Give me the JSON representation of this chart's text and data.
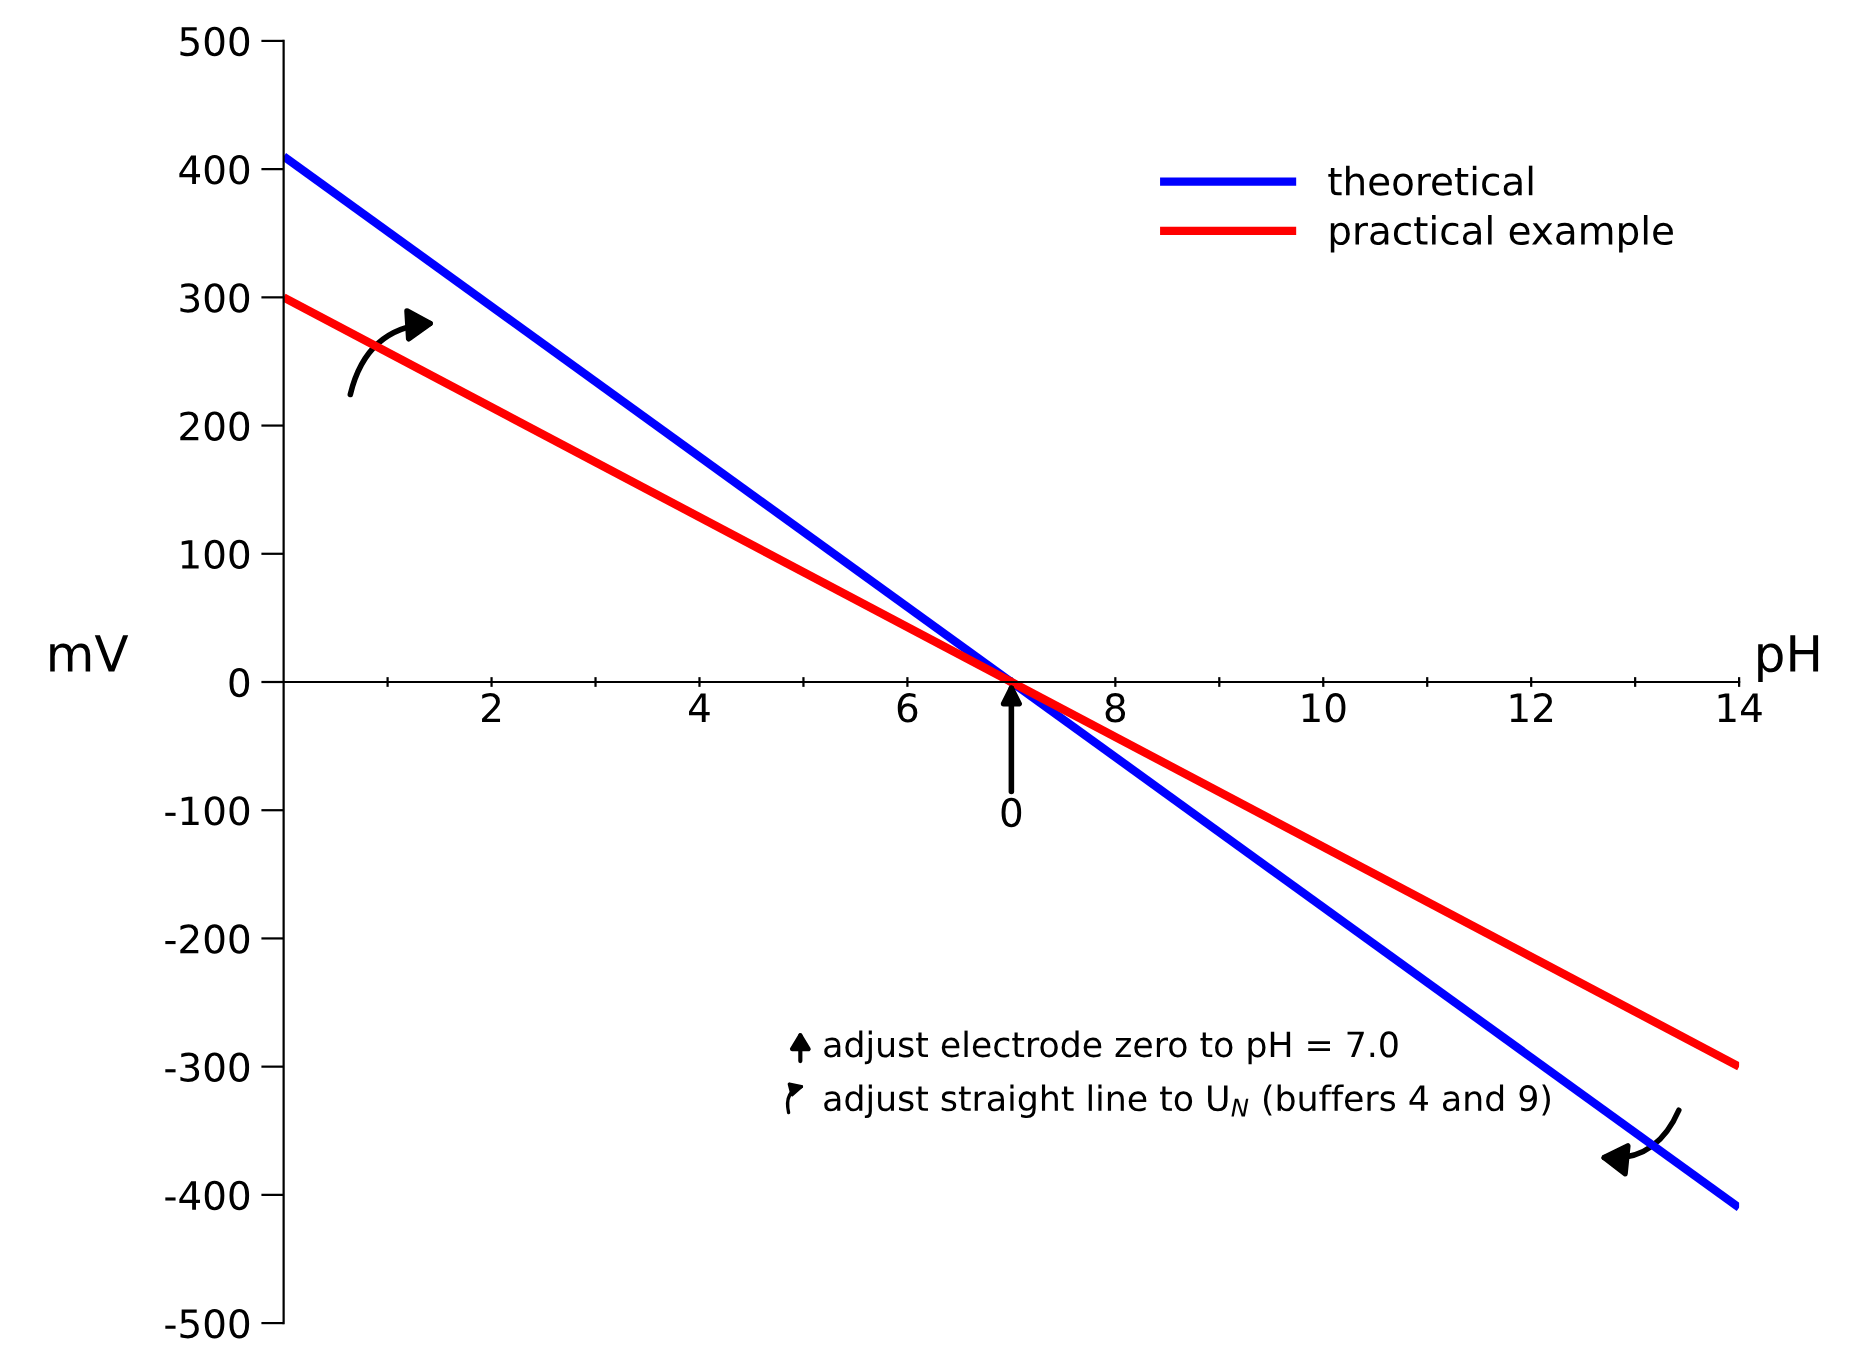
{
  "chart_data": {
    "type": "line",
    "xlabel": "pH",
    "ylabel": "mV",
    "x": [
      0,
      14
    ],
    "series": [
      {
        "name": "theoretical",
        "color": "#0000ff",
        "values": [
          410,
          -410
        ]
      },
      {
        "name": "practical example",
        "color": "#ff0000",
        "values": [
          300,
          -300
        ]
      }
    ],
    "xlim": [
      0,
      14
    ],
    "ylim": [
      -500,
      500
    ],
    "xticks": [
      {
        "value": 1,
        "label": null
      },
      2,
      {
        "value": 3,
        "label": null
      },
      4,
      {
        "value": 5,
        "label": null
      },
      6,
      {
        "value": 7,
        "label": null
      },
      8,
      {
        "value": 9,
        "label": null
      },
      10,
      {
        "value": 11,
        "label": null
      },
      12,
      {
        "value": 13,
        "label": null
      },
      14
    ],
    "yticks": [
      -500,
      -400,
      -300,
      -200,
      -100,
      0,
      100,
      200,
      300,
      400,
      500
    ],
    "annotations": [
      {
        "text": "0",
        "x": 7,
        "y": 0
      },
      "adjust electrode zero to pH = 7.0",
      "adjust straight line to U$_{N}$ (buffers 4 and 9)"
    ],
    "legend": "top right",
    "grid": false,
    "marker": "none",
    "line_style": "solid"
  }
}
